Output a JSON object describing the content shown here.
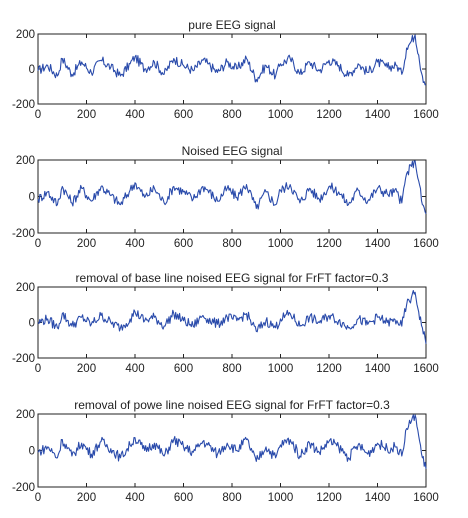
{
  "chart_data": [
    {
      "type": "line",
      "title": "pure EEG signal",
      "xlim": [
        0,
        1600
      ],
      "ylim": [
        -200,
        200
      ],
      "xticks": [
        0,
        200,
        400,
        600,
        800,
        1000,
        1200,
        1400,
        1600
      ],
      "yticks": [
        200,
        0,
        -200
      ],
      "series": [
        {
          "x": [
            0,
            40,
            80,
            100,
            140,
            180,
            220,
            260,
            300,
            340,
            380,
            400,
            440,
            480,
            520,
            560,
            600,
            640,
            680,
            700,
            740,
            780,
            820,
            860,
            900,
            940,
            980,
            1000,
            1040,
            1080,
            1120,
            1160,
            1200,
            1240,
            1280,
            1320,
            1360,
            1400,
            1440,
            1480,
            1500,
            1520,
            1540,
            1555,
            1570,
            1585,
            1600
          ],
          "y": [
            -10,
            20,
            -40,
            60,
            -30,
            40,
            -20,
            50,
            10,
            -40,
            30,
            70,
            0,
            40,
            -30,
            60,
            20,
            -10,
            50,
            30,
            -20,
            40,
            0,
            60,
            -60,
            20,
            -40,
            30,
            60,
            -30,
            40,
            -10,
            50,
            20,
            -40,
            30,
            -20,
            40,
            10,
            20,
            -30,
            120,
            160,
            200,
            80,
            -40,
            -90
          ]
        }
      ]
    },
    {
      "type": "line",
      "title": "Noised EEG signal",
      "xlim": [
        0,
        1600
      ],
      "ylim": [
        -200,
        200
      ],
      "xticks": [
        0,
        200,
        400,
        600,
        800,
        1000,
        1200,
        1400,
        1600
      ],
      "yticks": [
        200,
        0,
        -200
      ],
      "series": [
        {
          "x": [
            0,
            40,
            80,
            100,
            140,
            180,
            220,
            260,
            300,
            340,
            380,
            400,
            440,
            480,
            520,
            560,
            600,
            640,
            680,
            700,
            740,
            780,
            820,
            860,
            900,
            940,
            980,
            1000,
            1040,
            1080,
            1120,
            1160,
            1200,
            1240,
            1280,
            1320,
            1360,
            1400,
            1440,
            1480,
            1500,
            1520,
            1540,
            1555,
            1570,
            1585,
            1600
          ],
          "y": [
            -15,
            25,
            -45,
            55,
            -35,
            45,
            -25,
            55,
            5,
            -45,
            35,
            75,
            -5,
            45,
            -35,
            55,
            25,
            -15,
            55,
            35,
            -25,
            45,
            -5,
            65,
            -65,
            25,
            -45,
            35,
            65,
            -35,
            45,
            -15,
            55,
            25,
            -45,
            35,
            -25,
            45,
            15,
            25,
            -35,
            125,
            165,
            205,
            85,
            -45,
            -95
          ]
        }
      ]
    },
    {
      "type": "line",
      "title": "removal  of base line noised EEG signal for FrFT factor=0.3",
      "xlim": [
        0,
        1600
      ],
      "ylim": [
        -200,
        200
      ],
      "xticks": [
        0,
        200,
        400,
        600,
        800,
        1000,
        1200,
        1400,
        1600
      ],
      "yticks": [
        200,
        0,
        -200
      ],
      "series": [
        {
          "x": [
            0,
            40,
            80,
            100,
            140,
            180,
            220,
            260,
            300,
            340,
            380,
            400,
            440,
            480,
            520,
            560,
            600,
            640,
            680,
            700,
            740,
            780,
            820,
            860,
            900,
            940,
            980,
            1000,
            1040,
            1080,
            1120,
            1160,
            1200,
            1240,
            1280,
            1320,
            1360,
            1400,
            1440,
            1480,
            1500,
            1520,
            1540,
            1555,
            1570,
            1585,
            1600
          ],
          "y": [
            0,
            20,
            -30,
            50,
            -20,
            30,
            -10,
            40,
            0,
            -30,
            20,
            60,
            10,
            30,
            -20,
            50,
            10,
            -20,
            40,
            20,
            -10,
            30,
            10,
            50,
            -50,
            10,
            -30,
            20,
            50,
            -20,
            30,
            0,
            40,
            10,
            -30,
            20,
            -10,
            30,
            0,
            10,
            -20,
            100,
            140,
            170,
            60,
            -30,
            -120
          ]
        }
      ]
    },
    {
      "type": "line",
      "title": "removal  of powe line noised EEG signal for FrFT factor=0.3",
      "xlim": [
        0,
        1600
      ],
      "ylim": [
        -200,
        200
      ],
      "xticks": [
        0,
        200,
        400,
        600,
        800,
        1000,
        1200,
        1400,
        1600
      ],
      "yticks": [
        200,
        0,
        -200
      ],
      "series": [
        {
          "x": [
            0,
            40,
            80,
            100,
            140,
            180,
            220,
            260,
            300,
            340,
            380,
            400,
            440,
            480,
            520,
            560,
            600,
            640,
            680,
            700,
            740,
            780,
            820,
            860,
            900,
            940,
            980,
            1000,
            1040,
            1080,
            1120,
            1160,
            1200,
            1240,
            1280,
            1320,
            1360,
            1400,
            1440,
            1480,
            1500,
            1520,
            1540,
            1555,
            1570,
            1585,
            1600
          ],
          "y": [
            -10,
            20,
            -40,
            60,
            -30,
            40,
            -20,
            50,
            10,
            -40,
            30,
            70,
            0,
            40,
            -30,
            60,
            20,
            -10,
            50,
            30,
            -20,
            40,
            0,
            60,
            -60,
            20,
            -40,
            30,
            60,
            -30,
            40,
            -10,
            50,
            20,
            -40,
            30,
            -20,
            40,
            10,
            20,
            -30,
            120,
            160,
            200,
            80,
            -40,
            -100
          ]
        }
      ]
    }
  ],
  "colors": {
    "trace": "#2a4bab",
    "axis": "#222222"
  }
}
